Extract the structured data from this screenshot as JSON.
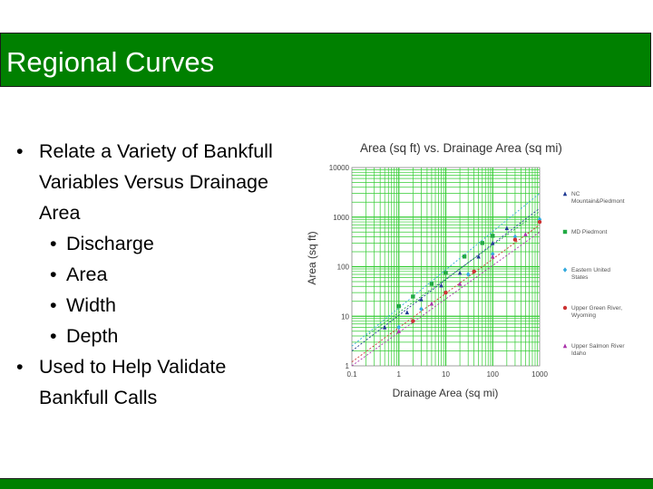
{
  "slide": {
    "title": "Regional Curves",
    "bullets": [
      {
        "level": 1,
        "text": "Relate a Variety of Bankfull Variables Versus Drainage Area",
        "lines": [
          "Relate a Variety of Bankfull",
          "Variables Versus Drainage",
          "Area"
        ]
      },
      {
        "level": 2,
        "text": "Discharge",
        "lines": [
          "Discharge"
        ]
      },
      {
        "level": 2,
        "text": "Area",
        "lines": [
          "Area"
        ]
      },
      {
        "level": 2,
        "text": "Width",
        "lines": [
          "Width"
        ]
      },
      {
        "level": 2,
        "text": "Depth",
        "lines": [
          "Depth"
        ]
      },
      {
        "level": 1,
        "text": "Used to Help Validate Bankfull Calls",
        "lines": [
          "Used to Help Validate",
          "Bankfull Calls"
        ]
      }
    ],
    "bullet_glyph": "•"
  },
  "colors": {
    "title_bar": "#008000",
    "title_text": "#ffffff",
    "grid": "#33cc33"
  },
  "chart_data": {
    "type": "scatter",
    "title": "Area (sq ft) vs. Drainage Area (sq mi)",
    "xlabel": "Drainage Area (sq mi)",
    "ylabel": "Area (sq ft)",
    "xscale": "log",
    "yscale": "log",
    "xlim": [
      0.1,
      1000
    ],
    "ylim": [
      1,
      10000
    ],
    "x_ticks": [
      "0.1",
      "1",
      "10",
      "100",
      "1000"
    ],
    "y_ticks": [
      "1",
      "10",
      "100",
      "1000",
      "10000"
    ],
    "grid": true,
    "legend_position": "right",
    "series": [
      {
        "name": "NC Mountain&Piedmont",
        "legend_lines": [
          "NC",
          "Mountain&Piedmont"
        ],
        "color": "#1f3a93",
        "marker": "triangle",
        "points": [
          [
            0.5,
            6
          ],
          [
            1.5,
            12
          ],
          [
            3,
            22
          ],
          [
            8,
            42
          ],
          [
            20,
            75
          ],
          [
            50,
            160
          ],
          [
            100,
            300
          ],
          [
            200,
            600
          ]
        ],
        "trend": [
          [
            0.1,
            2
          ],
          [
            1000,
            1500
          ]
        ]
      },
      {
        "name": "MD Piedmont",
        "legend_lines": [
          "MD Piedmont"
        ],
        "color": "#22aa44",
        "marker": "square",
        "points": [
          [
            1,
            16
          ],
          [
            2,
            25
          ],
          [
            5,
            45
          ],
          [
            10,
            75
          ],
          [
            25,
            160
          ],
          [
            60,
            300
          ],
          [
            100,
            420
          ]
        ],
        "trend": [
          [
            0.2,
            4
          ],
          [
            1000,
            1300
          ]
        ]
      },
      {
        "name": "Eastern United States",
        "legend_lines": [
          "Eastern United",
          "States"
        ],
        "color": "#33aadd",
        "marker": "diamond",
        "points": [
          [
            1,
            6
          ],
          [
            3,
            14
          ],
          [
            10,
            30
          ],
          [
            30,
            70
          ],
          [
            100,
            180
          ],
          [
            300,
            400
          ],
          [
            1000,
            900
          ]
        ],
        "trend": [
          [
            0.1,
            2.5
          ],
          [
            1000,
            3000
          ]
        ]
      },
      {
        "name": "Upper Green River, Wyoming",
        "legend_lines": [
          "Upper Green River,",
          "Wyoming"
        ],
        "color": "#cc3333",
        "marker": "circle",
        "points": [
          [
            2,
            8
          ],
          [
            10,
            30
          ],
          [
            40,
            80
          ],
          [
            300,
            350
          ],
          [
            1000,
            800
          ]
        ],
        "trend": [
          [
            0.1,
            1.2
          ],
          [
            1000,
            700
          ]
        ]
      },
      {
        "name": "Upper Salmon River Idaho",
        "legend_lines": [
          "Upper Salmon River",
          "Idaho"
        ],
        "color": "#aa33aa",
        "marker": "triangle",
        "points": [
          [
            1,
            5
          ],
          [
            5,
            18
          ],
          [
            20,
            45
          ],
          [
            100,
            160
          ],
          [
            500,
            450
          ]
        ],
        "trend": [
          [
            0.1,
            1
          ],
          [
            1000,
            500
          ]
        ]
      }
    ]
  }
}
